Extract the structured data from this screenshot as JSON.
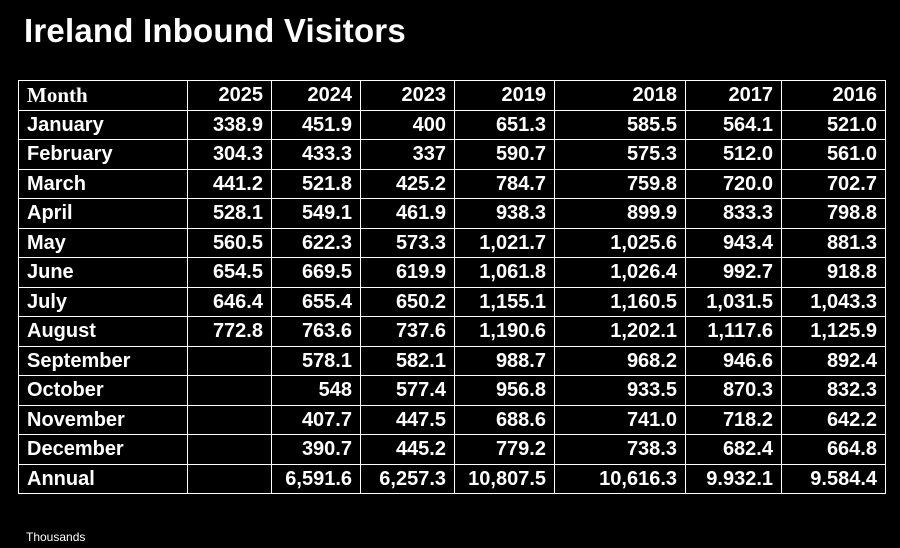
{
  "title": "Ireland Inbound Visitors",
  "footnote": "Thousands",
  "chart_data": {
    "type": "table",
    "title": "Ireland Inbound Visitors",
    "unit_note": "Thousands",
    "columns": [
      "Month",
      "2025",
      "2024",
      "2023",
      "2019",
      "2018",
      "2017",
      "2016"
    ],
    "rows": [
      [
        "January",
        "338.9",
        "451.9",
        "400",
        "651.3",
        "585.5",
        "564.1",
        "521.0"
      ],
      [
        "February",
        "304.3",
        "433.3",
        "337",
        "590.7",
        "575.3",
        "512.0",
        "561.0"
      ],
      [
        "March",
        "441.2",
        "521.8",
        "425.2",
        "784.7",
        "759.8",
        "720.0",
        "702.7"
      ],
      [
        "April",
        "528.1",
        "549.1",
        "461.9",
        "938.3",
        "899.9",
        "833.3",
        "798.8"
      ],
      [
        "May",
        "560.5",
        "622.3",
        "573.3",
        "1,021.7",
        "1,025.6",
        "943.4",
        "881.3"
      ],
      [
        "June",
        "654.5",
        "669.5",
        "619.9",
        "1,061.8",
        "1,026.4",
        "992.7",
        "918.8"
      ],
      [
        "July",
        "646.4",
        "655.4",
        "650.2",
        "1,155.1",
        "1,160.5",
        "1,031.5",
        "1,043.3"
      ],
      [
        "August",
        "772.8",
        "763.6",
        "737.6",
        "1,190.6",
        "1,202.1",
        "1,117.6",
        "1,125.9"
      ],
      [
        "September",
        "",
        "578.1",
        "582.1",
        "988.7",
        "968.2",
        "946.6",
        "892.4"
      ],
      [
        "October",
        "",
        "548",
        "577.4",
        "956.8",
        "933.5",
        "870.3",
        "832.3"
      ],
      [
        "November",
        "",
        "407.7",
        "447.5",
        "688.6",
        "741.0",
        "718.2",
        "642.2"
      ],
      [
        "December",
        "",
        "390.7",
        "445.2",
        "779.2",
        "738.3",
        "682.4",
        "664.8"
      ],
      [
        "Annual",
        "",
        "6,591.6",
        "6,257.3",
        "10,807.5",
        "10,616.3",
        "9.932.1",
        "9.584.4"
      ]
    ]
  }
}
